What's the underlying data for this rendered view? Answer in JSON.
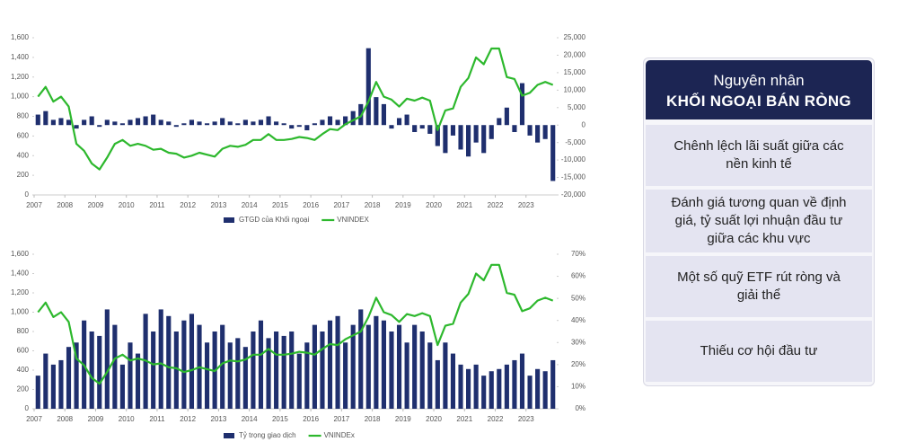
{
  "chart_data": [
    {
      "type": "combo",
      "x": [
        2007,
        2007.25,
        2007.5,
        2007.75,
        2008,
        2008.25,
        2008.5,
        2008.75,
        2009,
        2009.25,
        2009.5,
        2009.75,
        2010,
        2010.25,
        2010.5,
        2010.75,
        2011,
        2011.25,
        2011.5,
        2011.75,
        2012,
        2012.25,
        2012.5,
        2012.75,
        2013,
        2013.25,
        2013.5,
        2013.75,
        2014,
        2014.25,
        2014.5,
        2014.75,
        2015,
        2015.25,
        2015.5,
        2015.75,
        2016,
        2016.25,
        2016.5,
        2016.75,
        2017,
        2017.25,
        2017.5,
        2017.75,
        2018,
        2018.25,
        2018.5,
        2018.75,
        2019,
        2019.25,
        2019.5,
        2019.75,
        2020,
        2020.25,
        2020.5,
        2020.75,
        2021,
        2021.25,
        2021.5,
        2021.75,
        2022,
        2022.25,
        2022.5,
        2022.75,
        2023,
        2023.25,
        2023.5,
        2023.75
      ],
      "series": [
        {
          "name": "GTGD của Khối ngoại",
          "type": "bar",
          "axis": "y2",
          "color": "#1f2f6e",
          "values": [
            3000,
            4000,
            1500,
            2000,
            1500,
            -1000,
            1500,
            2500,
            -500,
            1500,
            1000,
            500,
            1500,
            2000,
            2500,
            3000,
            1500,
            1000,
            -500,
            500,
            1500,
            1000,
            500,
            1000,
            2000,
            1000,
            500,
            1500,
            1000,
            1500,
            2500,
            1000,
            500,
            -1000,
            -500,
            -1500,
            500,
            1500,
            2500,
            1500,
            2500,
            4000,
            6000,
            22000,
            8000,
            6000,
            -1000,
            2000,
            3000,
            -2000,
            -1000,
            -2500,
            -6000,
            -8000,
            -3000,
            -7000,
            -9000,
            -5000,
            -8000,
            -4000,
            2000,
            5000,
            -2000,
            12000,
            -3000,
            -5000,
            -4000,
            -16000
          ]
        },
        {
          "name": "VNINDEX",
          "type": "line",
          "color": "#2db82d",
          "values": [
            1000,
            1100,
            950,
            1000,
            900,
            520,
            450,
            320,
            260,
            380,
            520,
            560,
            500,
            520,
            500,
            460,
            470,
            430,
            420,
            380,
            400,
            430,
            410,
            390,
            470,
            500,
            490,
            510,
            560,
            560,
            620,
            560,
            560,
            570,
            590,
            580,
            560,
            620,
            670,
            660,
            720,
            760,
            800,
            950,
            1150,
            1000,
            970,
            900,
            980,
            960,
            990,
            960,
            660,
            860,
            880,
            1100,
            1190,
            1400,
            1330,
            1490,
            1490,
            1200,
            1180,
            1010,
            1040,
            1120,
            1150,
            1120
          ]
        }
      ],
      "xlim": [
        2007,
        2024
      ],
      "xticks": [
        2007,
        2008,
        2009,
        2010,
        2011,
        2012,
        2013,
        2014,
        2015,
        2016,
        2017,
        2018,
        2019,
        2020,
        2021,
        2022,
        2023
      ],
      "ylim": [
        0,
        1600
      ],
      "yticks": [
        0,
        200,
        400,
        600,
        800,
        {
          "value": 1000,
          "label": "1,000"
        },
        {
          "value": 1200,
          "label": "1,200"
        },
        {
          "value": 1400,
          "label": "1,400"
        },
        {
          "value": 1600,
          "label": "1,600"
        }
      ],
      "y2lim": [
        -20000,
        25000
      ],
      "y2ticks": [
        {
          "value": -20000,
          "label": "-20,000"
        },
        {
          "value": -15000,
          "label": "-15,000"
        },
        {
          "value": -10000,
          "label": "-10,000"
        },
        {
          "value": -5000,
          "label": "-5,000"
        },
        0,
        {
          "value": 5000,
          "label": "5,000"
        },
        {
          "value": 10000,
          "label": "10,000"
        },
        {
          "value": 15000,
          "label": "15,000"
        },
        {
          "value": 20000,
          "label": "20,000"
        },
        {
          "value": 25000,
          "label": "25,000"
        }
      ],
      "legend": "bottom"
    },
    {
      "type": "combo",
      "x": [
        2007,
        2007.25,
        2007.5,
        2007.75,
        2008,
        2008.25,
        2008.5,
        2008.75,
        2009,
        2009.25,
        2009.5,
        2009.75,
        2010,
        2010.25,
        2010.5,
        2010.75,
        2011,
        2011.25,
        2011.5,
        2011.75,
        2012,
        2012.25,
        2012.5,
        2012.75,
        2013,
        2013.25,
        2013.5,
        2013.75,
        2014,
        2014.25,
        2014.5,
        2014.75,
        2015,
        2015.25,
        2015.5,
        2015.75,
        2016,
        2016.25,
        2016.5,
        2016.75,
        2017,
        2017.25,
        2017.5,
        2017.75,
        2018,
        2018.25,
        2018.5,
        2018.75,
        2019,
        2019.25,
        2019.5,
        2019.75,
        2020,
        2020.25,
        2020.5,
        2020.75,
        2021,
        2021.25,
        2021.5,
        2021.75,
        2022,
        2022.25,
        2022.5,
        2022.75,
        2023,
        2023.25,
        2023.5,
        2023.75
      ],
      "series": [
        {
          "name": "Tỷ trọng giao dịch",
          "type": "bar",
          "axis": "y2",
          "color": "#1f2f6e",
          "values": [
            15,
            25,
            20,
            22,
            28,
            30,
            40,
            35,
            33,
            45,
            38,
            20,
            30,
            25,
            43,
            35,
            45,
            42,
            35,
            40,
            43,
            38,
            30,
            35,
            38,
            30,
            32,
            28,
            35,
            40,
            32,
            35,
            33,
            35,
            25,
            30,
            38,
            35,
            40,
            42,
            30,
            38,
            45,
            38,
            42,
            40,
            35,
            38,
            30,
            38,
            35,
            30,
            22,
            30,
            25,
            20,
            18,
            20,
            15,
            17,
            18,
            20,
            22,
            25,
            15,
            18,
            17,
            22
          ]
        },
        {
          "name": "VNINDEx",
          "type": "line",
          "color": "#2db82d",
          "values": [
            1000,
            1100,
            950,
            1000,
            900,
            520,
            450,
            320,
            260,
            380,
            520,
            560,
            500,
            520,
            500,
            460,
            470,
            430,
            420,
            380,
            400,
            430,
            410,
            390,
            470,
            500,
            490,
            510,
            560,
            560,
            620,
            560,
            560,
            570,
            590,
            580,
            560,
            620,
            670,
            660,
            720,
            760,
            800,
            950,
            1150,
            1000,
            970,
            900,
            980,
            960,
            990,
            960,
            660,
            860,
            880,
            1100,
            1190,
            1400,
            1330,
            1490,
            1490,
            1200,
            1180,
            1010,
            1040,
            1120,
            1150,
            1120
          ]
        }
      ],
      "xlim": [
        2007,
        2024
      ],
      "xticks": [
        2007,
        2008,
        2009,
        2010,
        2011,
        2012,
        2013,
        2014,
        2015,
        2016,
        2017,
        2018,
        2019,
        2020,
        2021,
        2022,
        2023
      ],
      "ylim": [
        0,
        1600
      ],
      "yticks": [
        0,
        200,
        400,
        600,
        800,
        {
          "value": 1000,
          "label": "1,000"
        },
        {
          "value": 1200,
          "label": "1,200"
        },
        {
          "value": 1400,
          "label": "1,400"
        },
        {
          "value": 1600,
          "label": "1,600"
        }
      ],
      "y2lim": [
        0,
        70
      ],
      "y2ticks": [
        {
          "value": 0,
          "label": "0%"
        },
        {
          "value": 10,
          "label": "10%"
        },
        {
          "value": 20,
          "label": "20%"
        },
        {
          "value": 30,
          "label": "30%"
        },
        {
          "value": 40,
          "label": "40%"
        },
        {
          "value": 50,
          "label": "50%"
        },
        {
          "value": 60,
          "label": "60%"
        },
        {
          "value": 70,
          "label": "70%"
        }
      ],
      "legend": "bottom"
    }
  ],
  "panel": {
    "title": "Nguyên nhân",
    "heading": "KHỐI NGOẠI BÁN RÒNG",
    "items": [
      "Chênh lệch lãi suất giữa các nền kinh tế",
      "Đánh giá tương quan về định giá, tỷ suất lợi nhuận đầu tư giữa các khu vực",
      "Một số quỹ ETF rút ròng và giải thể",
      "Thiếu cơ hội đầu tư"
    ]
  }
}
